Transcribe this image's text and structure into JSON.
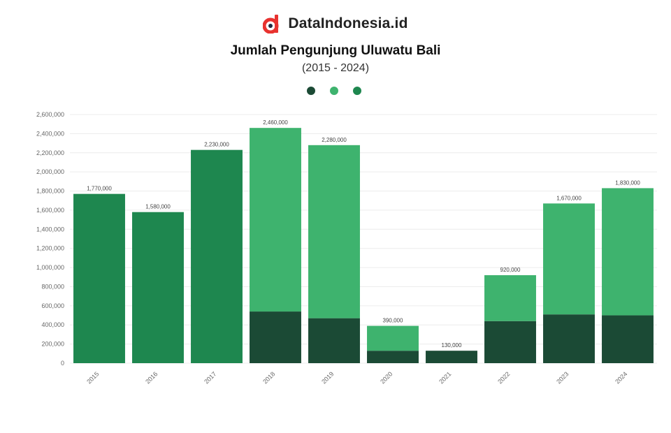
{
  "brand": {
    "name": "DataIndonesia.id",
    "accent_color": "#e8322f",
    "icon": "dataindonesia-logo-icon"
  },
  "chart_data": {
    "type": "bar",
    "stacked": true,
    "title": "Jumlah Pengunjung Uluwatu Bali",
    "subtitle": "(2015 - 2024)",
    "xlabel": "",
    "ylabel": "",
    "categories": [
      "2015",
      "2016",
      "2017",
      "2018",
      "2019",
      "2020",
      "2021",
      "2022",
      "2023",
      "2024"
    ],
    "series": [
      {
        "name": "",
        "color": "#1b4a35",
        "values": [
          null,
          null,
          null,
          540000,
          470000,
          130000,
          130000,
          440000,
          510000,
          500000
        ]
      },
      {
        "name": "",
        "color": "#3eb36e",
        "values": [
          null,
          null,
          null,
          1920000,
          1810000,
          260000,
          null,
          480000,
          1160000,
          1330000
        ]
      },
      {
        "name": "",
        "color": "#1e874f",
        "values": [
          1770000,
          1580000,
          2230000,
          null,
          null,
          null,
          null,
          null,
          null,
          null
        ]
      }
    ],
    "ylim": [
      0,
      2600000
    ],
    "yticks": [
      0,
      200000,
      400000,
      600000,
      800000,
      1000000,
      1200000,
      1400000,
      1600000,
      1800000,
      2000000,
      2200000,
      2400000,
      2600000
    ],
    "grid": true,
    "legend_position": "top-center"
  },
  "source": {
    "line1": "",
    "line2": ""
  }
}
